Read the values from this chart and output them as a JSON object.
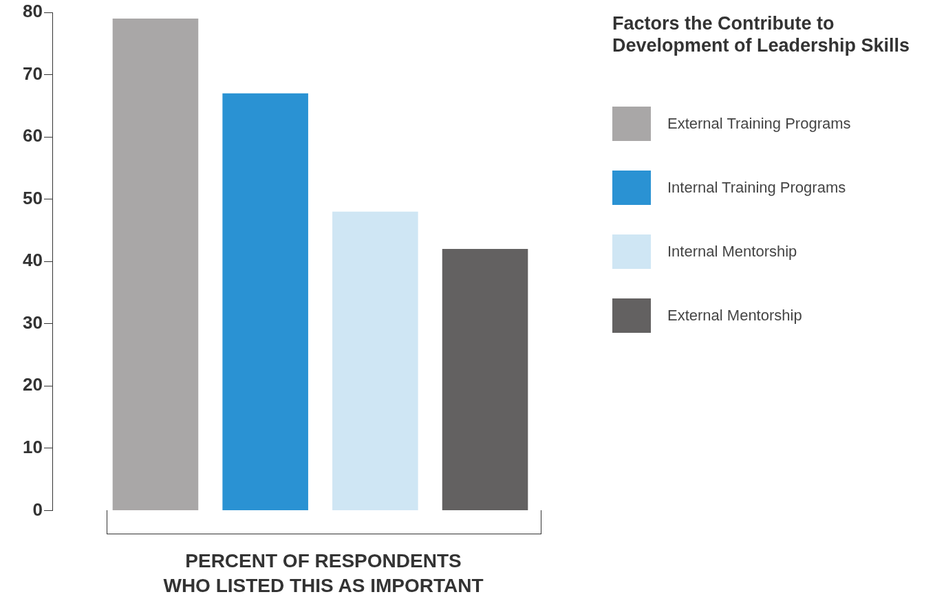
{
  "chart_data": {
    "type": "bar",
    "title": "Factors the Contribute to Development of Leadership Skills",
    "xlabel": "PERCENT OF RESPONDENTS\nWHO LISTED THIS AS IMPORTANT",
    "categories": [
      null
    ],
    "series": [
      {
        "name": "External Training Programs",
        "color": "#a9a7a7",
        "values": [
          79
        ]
      },
      {
        "name": "Internal Training Programs",
        "color": "#2a92d3",
        "values": [
          67
        ]
      },
      {
        "name": "Internal Mentorship",
        "color": "#cfe6f4",
        "values": [
          48
        ]
      },
      {
        "name": "External Mentorship",
        "color": "#636161",
        "values": [
          42
        ]
      }
    ],
    "ylim": [
      0,
      80
    ],
    "yticks": [
      0,
      10,
      20,
      30,
      40,
      50,
      60,
      70,
      80
    ],
    "grid": false,
    "legend": "right",
    "tick_labels": "y"
  }
}
